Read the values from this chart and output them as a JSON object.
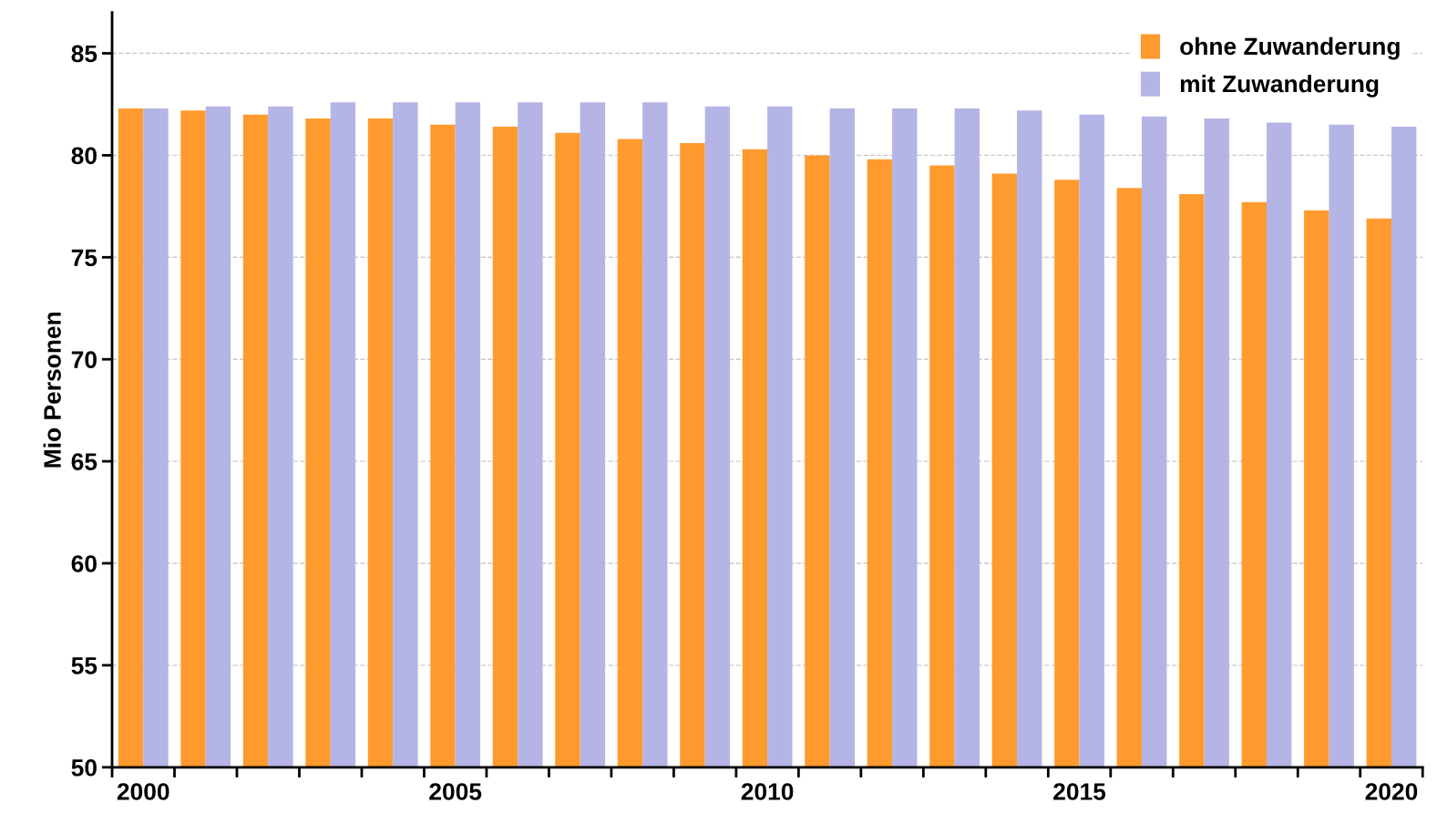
{
  "chart_data": {
    "type": "bar",
    "ylabel": "Mio Personen",
    "categories": [
      "2000",
      null,
      null,
      null,
      null,
      "2005",
      null,
      null,
      null,
      null,
      "2010",
      null,
      null,
      null,
      null,
      "2015",
      null,
      null,
      null,
      null,
      "2020"
    ],
    "series": [
      {
        "name": "ohne Zuwanderung",
        "color": "#ff9a2e",
        "values": [
          82.3,
          82.2,
          82.0,
          81.8,
          81.8,
          81.5,
          81.4,
          81.1,
          80.8,
          80.6,
          80.3,
          80.0,
          79.8,
          79.5,
          79.1,
          78.8,
          78.4,
          78.1,
          77.7,
          77.3,
          76.9
        ]
      },
      {
        "name": "mit Zuwanderung",
        "color": "#b4b4e6",
        "values": [
          82.3,
          82.4,
          82.4,
          82.6,
          82.6,
          82.6,
          82.6,
          82.6,
          82.6,
          82.4,
          82.4,
          82.3,
          82.3,
          82.3,
          82.2,
          82.0,
          81.9,
          81.8,
          81.6,
          81.5,
          81.4
        ]
      }
    ],
    "ylim": [
      50,
      87
    ],
    "yticks": [
      50,
      55,
      60,
      65,
      70,
      75,
      80,
      85
    ],
    "grid": "y",
    "legend": "top right"
  }
}
